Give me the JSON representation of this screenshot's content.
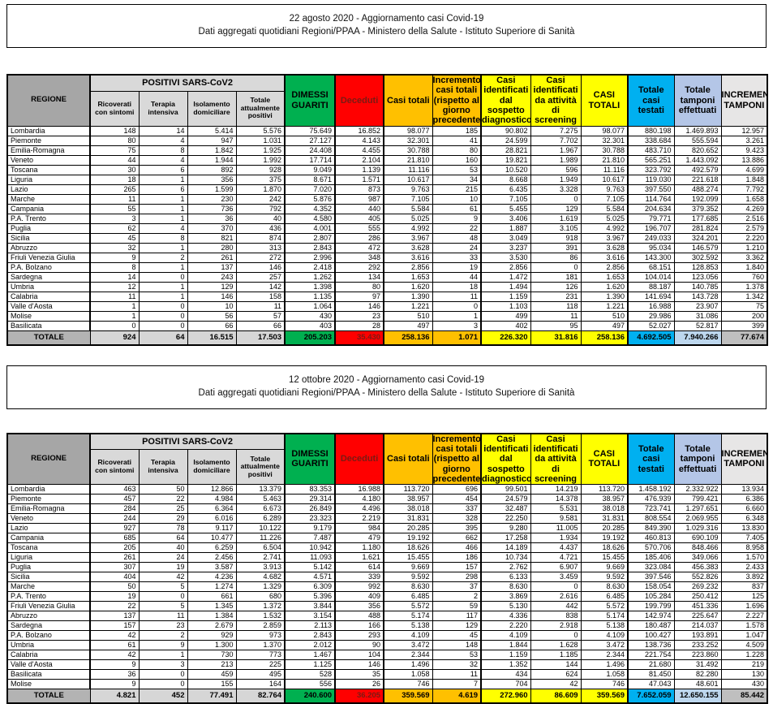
{
  "palette": {
    "green": "#00b050",
    "red": "#ff0000",
    "red_text": "#7b1a13",
    "orange": "#ffc000",
    "yellow": "#ffff00",
    "blue": "#00b0f0",
    "light_periwinkle": "#b4c6e7",
    "regione_header_gray": "#a6a6a6",
    "light_gray": "#d9d9d9",
    "totale_gray": "#bfbfbf"
  },
  "tables": [
    {
      "title": "22 agosto 2020 - Aggiornamento casi Covid-19",
      "subtitle": "Dati aggregati quotidiani Regioni/PPAA - Ministero della Salute - Istituto Superiore di Sanità",
      "header": {
        "regione": "REGIONE",
        "positivi_group": "POSITIVI SARS-CoV2",
        "cols": [
          "Ricoverati con sintomi",
          "Terapia intensiva",
          "Isolamento domiciliare",
          "Totale attualmente positivi",
          "DIMESSI GUARITI",
          "Deceduti",
          "Casi totali",
          "Incremento casi totali (rispetto al giorno precedente)",
          "Casi identificati dal sospetto diagnostico",
          "Casi identificati da attività di screening",
          "CASI TOTALI",
          "Totale casi testati",
          "Totale tamponi effettuati",
          "INCREMENTO TAMPONI"
        ]
      },
      "rows": [
        {
          "regione": "Lombardia",
          "values": [
            "148",
            "14",
            "5.414",
            "5.576",
            "75.649",
            "16.852",
            "98.077",
            "185",
            "90.802",
            "7.275",
            "98.077",
            "880.198",
            "1.469.893",
            "12.957"
          ]
        },
        {
          "regione": "Piemonte",
          "values": [
            "80",
            "4",
            "947",
            "1.031",
            "27.127",
            "4.143",
            "32.301",
            "41",
            "24.599",
            "7.702",
            "32.301",
            "338.684",
            "555.594",
            "3.261"
          ]
        },
        {
          "regione": "Emilia-Romagna",
          "values": [
            "75",
            "8",
            "1.842",
            "1.925",
            "24.408",
            "4.455",
            "30.788",
            "80",
            "28.821",
            "1.967",
            "30.788",
            "483.710",
            "820.652",
            "9.423"
          ]
        },
        {
          "regione": "Veneto",
          "values": [
            "44",
            "4",
            "1.944",
            "1.992",
            "17.714",
            "2.104",
            "21.810",
            "160",
            "19.821",
            "1.989",
            "21.810",
            "565.251",
            "1.443.092",
            "13.886"
          ]
        },
        {
          "regione": "Toscana",
          "values": [
            "30",
            "6",
            "892",
            "928",
            "9.049",
            "1.139",
            "11.116",
            "53",
            "10.520",
            "596",
            "11.116",
            "323.792",
            "492.579",
            "4.699"
          ]
        },
        {
          "regione": "Liguria",
          "values": [
            "18",
            "1",
            "356",
            "375",
            "8.671",
            "1.571",
            "10.617",
            "34",
            "8.668",
            "1.949",
            "10.617",
            "119.030",
            "221.618",
            "1.848"
          ]
        },
        {
          "regione": "Lazio",
          "values": [
            "265",
            "6",
            "1.599",
            "1.870",
            "7.020",
            "873",
            "9.763",
            "215",
            "6.435",
            "3.328",
            "9.763",
            "397.550",
            "488.274",
            "7.792"
          ]
        },
        {
          "regione": "Marche",
          "values": [
            "11",
            "1",
            "230",
            "242",
            "5.876",
            "987",
            "7.105",
            "10",
            "7.105",
            "0",
            "7.105",
            "114.764",
            "192.099",
            "1.658"
          ]
        },
        {
          "regione": "Campania",
          "values": [
            "55",
            "1",
            "736",
            "792",
            "4.352",
            "440",
            "5.584",
            "61",
            "5.455",
            "129",
            "5.584",
            "204.634",
            "379.352",
            "4.269"
          ]
        },
        {
          "regione": "P.A. Trento",
          "values": [
            "3",
            "1",
            "36",
            "40",
            "4.580",
            "405",
            "5.025",
            "9",
            "3.406",
            "1.619",
            "5.025",
            "79.771",
            "177.685",
            "2.516"
          ]
        },
        {
          "regione": "Puglia",
          "values": [
            "62",
            "4",
            "370",
            "436",
            "4.001",
            "555",
            "4.992",
            "22",
            "1.887",
            "3.105",
            "4.992",
            "196.707",
            "281.824",
            "2.579"
          ]
        },
        {
          "regione": "Sicilia",
          "values": [
            "45",
            "8",
            "821",
            "874",
            "2.807",
            "286",
            "3.967",
            "48",
            "3.049",
            "918",
            "3.967",
            "249.033",
            "324.201",
            "2.220"
          ]
        },
        {
          "regione": "Abruzzo",
          "values": [
            "32",
            "1",
            "280",
            "313",
            "2.843",
            "472",
            "3.628",
            "24",
            "3.237",
            "391",
            "3.628",
            "95.034",
            "146.579",
            "1.210"
          ]
        },
        {
          "regione": "Friuli Venezia Giulia",
          "values": [
            "9",
            "2",
            "261",
            "272",
            "2.996",
            "348",
            "3.616",
            "33",
            "3.530",
            "86",
            "3.616",
            "143.300",
            "302.592",
            "3.362"
          ]
        },
        {
          "regione": "P.A. Bolzano",
          "values": [
            "8",
            "1",
            "137",
            "146",
            "2.418",
            "292",
            "2.856",
            "19",
            "2.856",
            "0",
            "2.856",
            "68.151",
            "128.853",
            "1.840"
          ]
        },
        {
          "regione": "Sardegna",
          "values": [
            "14",
            "0",
            "243",
            "257",
            "1.262",
            "134",
            "1.653",
            "44",
            "1.472",
            "181",
            "1.653",
            "104.014",
            "123.056",
            "760"
          ]
        },
        {
          "regione": "Umbria",
          "values": [
            "12",
            "1",
            "129",
            "142",
            "1.398",
            "80",
            "1.620",
            "18",
            "1.494",
            "126",
            "1.620",
            "88.187",
            "140.785",
            "1.378"
          ]
        },
        {
          "regione": "Calabria",
          "values": [
            "11",
            "1",
            "146",
            "158",
            "1.135",
            "97",
            "1.390",
            "11",
            "1.159",
            "231",
            "1.390",
            "141.694",
            "143.728",
            "1.342"
          ]
        },
        {
          "regione": "Valle d'Aosta",
          "values": [
            "1",
            "0",
            "10",
            "11",
            "1.064",
            "146",
            "1.221",
            "0",
            "1.103",
            "118",
            "1.221",
            "16.988",
            "23.907",
            "75"
          ]
        },
        {
          "regione": "Molise",
          "values": [
            "1",
            "0",
            "56",
            "57",
            "430",
            "23",
            "510",
            "1",
            "499",
            "11",
            "510",
            "29.986",
            "31.086",
            "200"
          ]
        },
        {
          "regione": "Basilicata",
          "values": [
            "0",
            "0",
            "66",
            "66",
            "403",
            "28",
            "497",
            "3",
            "402",
            "95",
            "497",
            "52.027",
            "52.817",
            "399"
          ]
        }
      ],
      "totale": {
        "label": "TOTALE",
        "values": [
          "924",
          "64",
          "16.515",
          "17.503",
          "205.203",
          "35.430",
          "258.136",
          "1.071",
          "226.320",
          "31.816",
          "258.136",
          "4.692.505",
          "7.940.266",
          "77.674"
        ]
      }
    },
    {
      "title": "12 ottobre 2020 - Aggiornamento casi Covid-19",
      "subtitle": "Dati aggregati quotidiani Regioni/PPAA - Ministero della Salute - Istituto Superiore di Sanità",
      "header": {
        "regione": "REGIONE",
        "positivi_group": "POSITIVI SARS-CoV2",
        "cols": [
          "Ricoverati con sintomi",
          "Terapia intensiva",
          "Isolamento domiciliare",
          "Totale attualmente positivi",
          "DIMESSI GUARITI",
          "Deceduti",
          "Casi totali",
          "Incremento casi totali (rispetto al giorno precedente)",
          "Casi identificati dal sospetto diagnostico",
          "Casi identificati da attività di screening",
          "CASI TOTALI",
          "Totale casi testati",
          "Totale tamponi effettuati",
          "INCREMENTO TAMPONI"
        ]
      },
      "rows": [
        {
          "regione": "Lombardia",
          "values": [
            "463",
            "50",
            "12.866",
            "13.379",
            "83.353",
            "16.988",
            "113.720",
            "696",
            "99.501",
            "14.219",
            "113.720",
            "1.458.192",
            "2.332.922",
            "13.934"
          ]
        },
        {
          "regione": "Piemonte",
          "values": [
            "457",
            "22",
            "4.984",
            "5.463",
            "29.314",
            "4.180",
            "38.957",
            "454",
            "24.579",
            "14.378",
            "38.957",
            "476.939",
            "799.421",
            "6.386"
          ]
        },
        {
          "regione": "Emilia-Romagna",
          "values": [
            "284",
            "25",
            "6.364",
            "6.673",
            "26.849",
            "4.496",
            "38.018",
            "337",
            "32.487",
            "5.531",
            "38.018",
            "723.741",
            "1.297.651",
            "6.660"
          ]
        },
        {
          "regione": "Veneto",
          "values": [
            "244",
            "29",
            "6.016",
            "6.289",
            "23.323",
            "2.219",
            "31.831",
            "328",
            "22.250",
            "9.581",
            "31.831",
            "808.554",
            "2.069.955",
            "6.348"
          ]
        },
        {
          "regione": "Lazio",
          "values": [
            "927",
            "78",
            "9.117",
            "10.122",
            "9.179",
            "984",
            "20.285",
            "395",
            "9.280",
            "11.005",
            "20.285",
            "849.390",
            "1.029.316",
            "13.830"
          ]
        },
        {
          "regione": "Campania",
          "values": [
            "685",
            "64",
            "10.477",
            "11.226",
            "7.487",
            "479",
            "19.192",
            "662",
            "17.258",
            "1.934",
            "19.192",
            "460.813",
            "690.109",
            "7.405"
          ]
        },
        {
          "regione": "Toscana",
          "values": [
            "205",
            "40",
            "6.259",
            "6.504",
            "10.942",
            "1.180",
            "18.626",
            "466",
            "14.189",
            "4.437",
            "18.626",
            "570.706",
            "848.466",
            "8.958"
          ]
        },
        {
          "regione": "Liguria",
          "values": [
            "261",
            "24",
            "2.456",
            "2.741",
            "11.093",
            "1.621",
            "15.455",
            "186",
            "10.734",
            "4.721",
            "15.455",
            "185.406",
            "349.066",
            "1.570"
          ]
        },
        {
          "regione": "Puglia",
          "values": [
            "307",
            "19",
            "3.587",
            "3.913",
            "5.142",
            "614",
            "9.669",
            "157",
            "2.762",
            "6.907",
            "9.669",
            "323.084",
            "456.383",
            "2.433"
          ]
        },
        {
          "regione": "Sicilia",
          "values": [
            "404",
            "42",
            "4.236",
            "4.682",
            "4.571",
            "339",
            "9.592",
            "298",
            "6.133",
            "3.459",
            "9.592",
            "397.546",
            "552.826",
            "3.892"
          ]
        },
        {
          "regione": "Marche",
          "values": [
            "50",
            "5",
            "1.274",
            "1.329",
            "6.309",
            "992",
            "8.630",
            "37",
            "8.630",
            "0",
            "8.630",
            "158.054",
            "269.232",
            "837"
          ]
        },
        {
          "regione": "P.A. Trento",
          "values": [
            "19",
            "0",
            "661",
            "680",
            "5.396",
            "409",
            "6.485",
            "2",
            "3.869",
            "2.616",
            "6.485",
            "105.284",
            "250.412",
            "125"
          ]
        },
        {
          "regione": "Friuli Venezia Giulia",
          "values": [
            "22",
            "5",
            "1.345",
            "1.372",
            "3.844",
            "356",
            "5.572",
            "59",
            "5.130",
            "442",
            "5.572",
            "199.799",
            "451.336",
            "1.696"
          ]
        },
        {
          "regione": "Abruzzo",
          "values": [
            "137",
            "11",
            "1.384",
            "1.532",
            "3.154",
            "488",
            "5.174",
            "117",
            "4.336",
            "838",
            "5.174",
            "142.974",
            "225.647",
            "2.227"
          ]
        },
        {
          "regione": "Sardegna",
          "values": [
            "157",
            "23",
            "2.679",
            "2.859",
            "2.113",
            "166",
            "5.138",
            "129",
            "2.220",
            "2.918",
            "5.138",
            "180.487",
            "214.037",
            "1.578"
          ]
        },
        {
          "regione": "P.A. Bolzano",
          "values": [
            "42",
            "2",
            "929",
            "973",
            "2.843",
            "293",
            "4.109",
            "45",
            "4.109",
            "0",
            "4.109",
            "100.427",
            "193.891",
            "1.047"
          ]
        },
        {
          "regione": "Umbria",
          "values": [
            "61",
            "9",
            "1.300",
            "1.370",
            "2.012",
            "90",
            "3.472",
            "148",
            "1.844",
            "1.628",
            "3.472",
            "138.736",
            "233.252",
            "4.509"
          ]
        },
        {
          "regione": "Calabria",
          "values": [
            "42",
            "1",
            "730",
            "773",
            "1.467",
            "104",
            "2.344",
            "53",
            "1.159",
            "1.185",
            "2.344",
            "221.754",
            "223.860",
            "1.228"
          ]
        },
        {
          "regione": "Valle d'Aosta",
          "values": [
            "9",
            "3",
            "213",
            "225",
            "1.125",
            "146",
            "1.496",
            "32",
            "1.352",
            "144",
            "1.496",
            "21.680",
            "31.492",
            "219"
          ]
        },
        {
          "regione": "Basilicata",
          "values": [
            "36",
            "0",
            "459",
            "495",
            "528",
            "35",
            "1.058",
            "11",
            "434",
            "624",
            "1.058",
            "81.450",
            "82.280",
            "130"
          ]
        },
        {
          "regione": "Molise",
          "values": [
            "9",
            "0",
            "155",
            "164",
            "556",
            "26",
            "746",
            "7",
            "704",
            "42",
            "746",
            "47.043",
            "48.601",
            "430"
          ]
        }
      ],
      "totale": {
        "label": "TOTALE",
        "values": [
          "4.821",
          "452",
          "77.491",
          "82.764",
          "240.600",
          "36.205",
          "359.569",
          "4.619",
          "272.960",
          "86.609",
          "359.569",
          "7.652.059",
          "12.650.155",
          "85.442"
        ]
      }
    }
  ]
}
